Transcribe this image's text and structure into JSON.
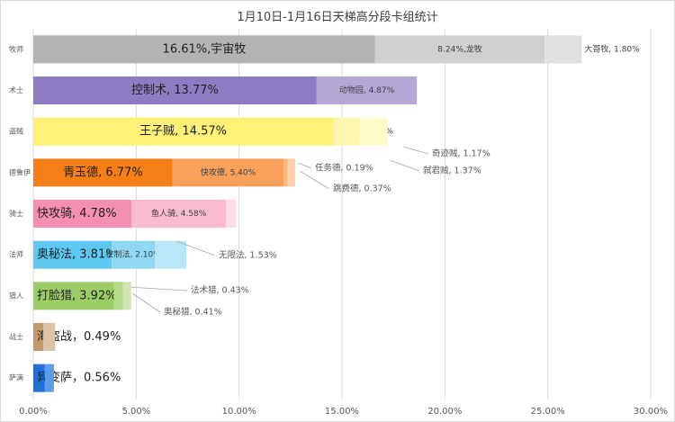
{
  "chart_data": {
    "type": "bar",
    "orientation": "horizontal",
    "stacked": true,
    "title": "1月10日-1月16日天梯高分段卡组统计",
    "xlabel": "",
    "ylabel": "",
    "xlim": [
      0,
      30
    ],
    "x_ticks": [
      "0.00%",
      "5.00%",
      "10.00%",
      "15.00%",
      "20.00%",
      "25.00%",
      "30.00%"
    ],
    "grid": "vertical",
    "classes": [
      {
        "name": "牧师",
        "color": "#a6a6a6",
        "segments": [
          {
            "deck": "宇宙牧",
            "value": 16.61,
            "label": "16.61%,宇宙牧",
            "color": "#b3b3b3"
          },
          {
            "deck": "龙牧",
            "value": 8.24,
            "label": "8.24%,龙牧",
            "color": "#d0d0d0"
          },
          {
            "deck": "大哥牧",
            "value": 1.8,
            "label": "大哥牧, 1.80%",
            "color": "#e0e0e0"
          }
        ]
      },
      {
        "name": "术士",
        "color": "#8e7cc3",
        "segments": [
          {
            "deck": "控制术",
            "value": 13.77,
            "label": "控制术, 13.77%",
            "color": "#8e7cc3"
          },
          {
            "deck": "动物园",
            "value": 4.87,
            "label": "动物园, 4.87%",
            "color": "#b4a7d6"
          }
        ]
      },
      {
        "name": "盗贼",
        "color": "#fff176",
        "segments": [
          {
            "deck": "王子贼",
            "value": 14.57,
            "label": "王子贼, 14.57%",
            "color": "#fff176"
          },
          {
            "deck": "其他贼",
            "value": 0.1,
            "label": "其他贼, 0.10%",
            "color": "#fff59d"
          },
          {
            "deck": "奇迹贼",
            "value": 1.17,
            "label": "奇迹贼, 1.17%",
            "color": "#fff7b0"
          },
          {
            "deck": "弑君贼",
            "value": 1.37,
            "label": "弑君贼, 1.37%",
            "color": "#fffac8"
          }
        ]
      },
      {
        "name": "德鲁伊",
        "color": "#f57f17",
        "segments": [
          {
            "deck": "青玉德",
            "value": 6.77,
            "label": "青玉德, 6.77%",
            "color": "#f57f17"
          },
          {
            "deck": "快攻德",
            "value": 5.4,
            "label": "快攻德, 5.40%",
            "color": "#f9a05a"
          },
          {
            "deck": "任务德",
            "value": 0.19,
            "label": "任务德, 0.19%",
            "color": "#fbb87c"
          },
          {
            "deck": "跳费德",
            "value": 0.37,
            "label": "跳费德, 0.37%",
            "color": "#fcd0a8"
          }
        ]
      },
      {
        "name": "骑士",
        "color": "#f48fb1",
        "segments": [
          {
            "deck": "快攻骑",
            "value": 4.78,
            "label": "快攻骑, 4.78%",
            "color": "#f48fb1"
          },
          {
            "deck": "鱼人骑",
            "value": 4.58,
            "label": "鱼人骑, 4.58%",
            "color": "#f8bbd0"
          },
          {
            "deck": "other",
            "value": 0.5,
            "label": "",
            "color": "#fcdde8"
          }
        ]
      },
      {
        "name": "法师",
        "color": "#5ec8f0",
        "segments": [
          {
            "deck": "奥秘法",
            "value": 3.81,
            "label": "奥秘法, 3.81%",
            "color": "#5ec8f0"
          },
          {
            "deck": "控制法",
            "value": 2.1,
            "label": "控制法, 2.10%",
            "color": "#8fd8f4"
          },
          {
            "deck": "无限法",
            "value": 1.53,
            "label": "无限法, 1.53%",
            "color": "#b9e6f8"
          }
        ]
      },
      {
        "name": "猎人",
        "color": "#9ccc65",
        "segments": [
          {
            "deck": "打脸猎",
            "value": 3.92,
            "label": "打脸猎, 3.92%",
            "color": "#9ccc65"
          },
          {
            "deck": "法术猎",
            "value": 0.43,
            "label": "法术猎, 0.43%",
            "color": "#b5d98a"
          },
          {
            "deck": "奥秘猎",
            "value": 0.41,
            "label": "奥秘猎, 0.41%",
            "color": "#cfe6b3"
          }
        ]
      },
      {
        "name": "战士",
        "color": "#c49a6c",
        "segments": [
          {
            "deck": "海盗战",
            "value": 0.49,
            "label": "海盗战，0.49%",
            "color": "#c49a6c"
          },
          {
            "deck": "other",
            "value": 0.57,
            "label": "",
            "color": "#dcc3a5"
          }
        ]
      },
      {
        "name": "萨满",
        "color": "#1e6fd9",
        "segments": [
          {
            "deck": "异变萨",
            "value": 0.56,
            "label": "异变萨，0.56%",
            "color": "#1e6fd9"
          },
          {
            "deck": "other",
            "value": 0.44,
            "label": "",
            "color": "#5b9be8"
          }
        ]
      }
    ]
  }
}
